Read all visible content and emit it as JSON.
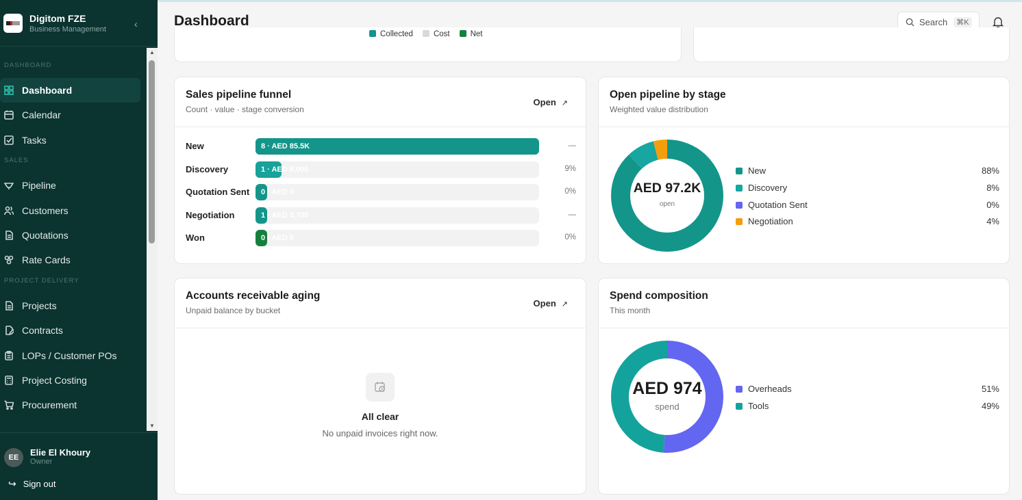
{
  "brand": {
    "name": "Digitom FZE",
    "subtitle": "Business Management"
  },
  "sidebar": {
    "sections": [
      {
        "label": "DASHBOARD",
        "items": [
          {
            "label": "Dashboard",
            "icon": "grid-icon",
            "active": true
          },
          {
            "label": "Calendar",
            "icon": "calendar-icon"
          },
          {
            "label": "Tasks",
            "icon": "check-square-icon"
          }
        ]
      },
      {
        "label": "SALES",
        "items": [
          {
            "label": "Pipeline",
            "icon": "pipeline-icon"
          },
          {
            "label": "Customers",
            "icon": "users-icon"
          },
          {
            "label": "Quotations",
            "icon": "file-icon"
          },
          {
            "label": "Rate Cards",
            "icon": "rate-card-icon"
          }
        ]
      },
      {
        "label": "PROJECT DELIVERY",
        "items": [
          {
            "label": "Projects",
            "icon": "file-icon"
          },
          {
            "label": "Contracts",
            "icon": "contract-icon"
          },
          {
            "label": "LOPs / Customer POs",
            "icon": "clipboard-icon"
          },
          {
            "label": "Project Costing",
            "icon": "calculator-icon"
          },
          {
            "label": "Procurement",
            "icon": "cart-icon"
          }
        ]
      }
    ]
  },
  "user": {
    "initials": "EE",
    "name": "Elie El Khoury",
    "role": "Owner",
    "signout": "Sign out"
  },
  "header": {
    "title": "Dashboard",
    "search_label": "Search",
    "search_kbd": "⌘K"
  },
  "top_legend": [
    {
      "label": "Collected",
      "color": "#14958a"
    },
    {
      "label": "Cost",
      "color": "#d9d9d9"
    },
    {
      "label": "Net",
      "color": "#15803d"
    }
  ],
  "funnel": {
    "title": "Sales pipeline funnel",
    "subtitle": "Count · value · stage conversion",
    "open_label": "Open",
    "rows": [
      {
        "stage": "New",
        "text": "8 · AED 85.5K",
        "fill": 1.0,
        "pct": "—",
        "color": "#14958a"
      },
      {
        "stage": "Discovery",
        "text": "1 · AED 8,000",
        "fill": 0.09,
        "pct": "9%",
        "color": "#17a29a"
      },
      {
        "stage": "Quotation Sent",
        "text": "0 · AED 0",
        "fill": 0.0,
        "pct": "0%",
        "color": "#14958a"
      },
      {
        "stage": "Negotiation",
        "text": "1 · AED 3,700",
        "fill": 0.0,
        "pct": "—",
        "color": "#14958a"
      },
      {
        "stage": "Won",
        "text": "0 · AED 0",
        "fill": 0.0,
        "pct": "0%",
        "color": "#15803d"
      }
    ]
  },
  "pipeline_stage": {
    "title": "Open pipeline by stage",
    "subtitle": "Weighted value distribution",
    "center_value": "AED 97.2K",
    "center_label": "open",
    "slices": [
      {
        "name": "New",
        "pct": "88%",
        "value": 88,
        "color": "#14958a"
      },
      {
        "name": "Discovery",
        "pct": "8%",
        "value": 8,
        "color": "#17a6a0"
      },
      {
        "name": "Quotation Sent",
        "pct": "0%",
        "value": 0,
        "color": "#6366f1"
      },
      {
        "name": "Negotiation",
        "pct": "4%",
        "value": 4,
        "color": "#f59e0b"
      }
    ]
  },
  "ar_aging": {
    "title": "Accounts receivable aging",
    "subtitle": "Unpaid balance by bucket",
    "open_label": "Open",
    "empty_title": "All clear",
    "empty_sub": "No unpaid invoices right now."
  },
  "spend": {
    "title": "Spend composition",
    "subtitle": "This month",
    "center_value": "AED 974",
    "center_label": "spend",
    "slices": [
      {
        "name": "Overheads",
        "pct": "51%",
        "value": 51,
        "color": "#6366f1"
      },
      {
        "name": "Tools",
        "pct": "49%",
        "value": 49,
        "color": "#14a39c"
      }
    ]
  }
}
